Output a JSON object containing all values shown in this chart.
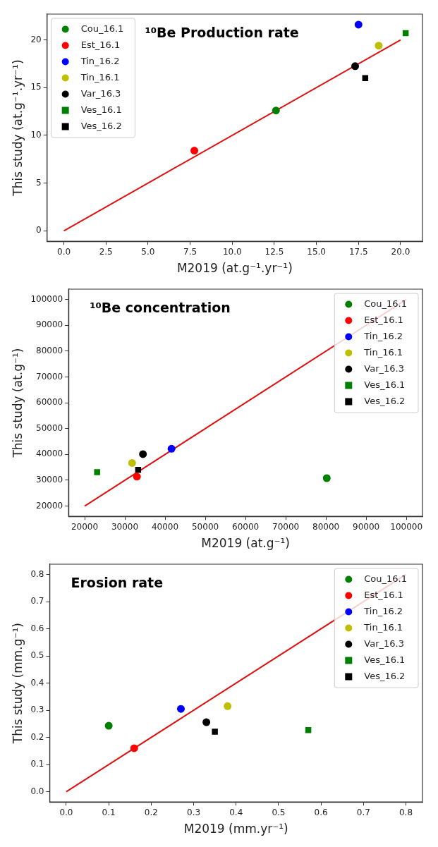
{
  "chart_data": [
    {
      "type": "scatter",
      "title": "¹⁰Be Production rate",
      "xlabel": "M2019 (at.g⁻¹.yr⁻¹)",
      "ylabel": "This study (at.g⁻¹.yr⁻¹)",
      "xlim": [
        -1,
        21.3
      ],
      "ylim": [
        -1.1,
        22.7
      ],
      "xticks": [
        {
          "value": 0,
          "label": "0.0"
        },
        2.5,
        {
          "value": 5,
          "label": "5.0"
        },
        7.5,
        {
          "value": 10,
          "label": "10.0"
        },
        12.5,
        {
          "value": 15,
          "label": "15.0"
        },
        17.5,
        {
          "value": 20,
          "label": "20.0"
        }
      ],
      "yticks": [
        0,
        5,
        10,
        15,
        20
      ],
      "grid": false,
      "legend": "top left",
      "series": [
        {
          "name": "Cou_16.1",
          "color": "#008000",
          "marker": "circle",
          "x": [
            12.6
          ],
          "values": [
            12.6
          ]
        },
        {
          "name": "Est_16.1",
          "color": "#ff0000",
          "marker": "circle",
          "x": [
            7.75
          ],
          "values": [
            8.4
          ]
        },
        {
          "name": "Tin_16.2",
          "color": "#0000ff",
          "marker": "circle",
          "x": [
            17.5
          ],
          "values": [
            21.6
          ]
        },
        {
          "name": "Tin_16.1",
          "color": "#bfbf00",
          "marker": "circle",
          "x": [
            18.7
          ],
          "values": [
            19.4
          ]
        },
        {
          "name": "Var_16.3",
          "color": "#000000",
          "marker": "circle",
          "x": [
            17.3
          ],
          "values": [
            17.25
          ]
        },
        {
          "name": "Ves_16.1",
          "color": "#008000",
          "marker": "square",
          "x": [
            20.3
          ],
          "values": [
            20.7
          ]
        },
        {
          "name": "Ves_16.2",
          "color": "#000000",
          "marker": "square",
          "x": [
            17.9
          ],
          "values": [
            16
          ]
        },
        {
          "type": "line",
          "color": "#e01010",
          "marker": "none",
          "x": [
            0,
            20
          ],
          "values": [
            0,
            20
          ]
        }
      ]
    },
    {
      "type": "scatter",
      "title": "¹⁰Be concentration",
      "xlabel": "M2019 (at.g⁻¹)",
      "ylabel": "This study (at.g⁻¹)",
      "xlim": [
        16000,
        104000
      ],
      "ylim": [
        16000,
        104000
      ],
      "xticks": [
        20000,
        30000,
        40000,
        50000,
        60000,
        70000,
        80000,
        90000,
        100000
      ],
      "yticks": [
        20000,
        30000,
        40000,
        50000,
        60000,
        70000,
        80000,
        90000,
        100000
      ],
      "grid": false,
      "legend": "top right",
      "series": [
        {
          "name": "Cou_16.1",
          "color": "#008000",
          "marker": "circle",
          "x": [
            80200
          ],
          "values": [
            30800
          ]
        },
        {
          "name": "Est_16.1",
          "color": "#ff0000",
          "marker": "circle",
          "x": [
            33000
          ],
          "values": [
            31400
          ]
        },
        {
          "name": "Tin_16.2",
          "color": "#0000ff",
          "marker": "circle",
          "x": [
            41600
          ],
          "values": [
            42200
          ]
        },
        {
          "name": "Tin_16.1",
          "color": "#bfbf00",
          "marker": "circle",
          "x": [
            31800
          ],
          "values": [
            36700
          ]
        },
        {
          "name": "Var_16.3",
          "color": "#000000",
          "marker": "circle",
          "x": [
            34500
          ],
          "values": [
            40100
          ]
        },
        {
          "name": "Ves_16.1",
          "color": "#008000",
          "marker": "square",
          "x": [
            23100
          ],
          "values": [
            33100
          ]
        },
        {
          "name": "Ves_16.2",
          "color": "#000000",
          "marker": "square",
          "x": [
            33300
          ],
          "values": [
            34000
          ]
        },
        {
          "type": "line",
          "color": "#e01010",
          "marker": "none",
          "x": [
            20000,
            100000
          ],
          "values": [
            20000,
            100000
          ]
        }
      ]
    },
    {
      "type": "scatter",
      "title": "Erosion rate",
      "xlabel": "M2019 (mm.yr⁻¹)",
      "ylabel": "This study (mm.g⁻¹)",
      "xlim": [
        -0.039,
        0.839
      ],
      "ylim": [
        -0.038,
        0.838
      ],
      "xticks": [
        {
          "value": 0,
          "label": "0.0"
        },
        0.1,
        0.2,
        0.3,
        0.4,
        0.5,
        0.6,
        0.7,
        0.8
      ],
      "yticks": [
        {
          "value": 0,
          "label": "0.0"
        },
        0.1,
        0.2,
        0.3,
        0.4,
        0.5,
        0.6,
        0.7,
        0.8
      ],
      "grid": false,
      "legend": "top right",
      "series": [
        {
          "name": "Cou_16.1",
          "color": "#008000",
          "marker": "circle",
          "x": [
            0.1
          ],
          "values": [
            0.243
          ]
        },
        {
          "name": "Est_16.1",
          "color": "#ff0000",
          "marker": "circle",
          "x": [
            0.16
          ],
          "values": [
            0.16
          ]
        },
        {
          "name": "Tin_16.2",
          "color": "#0000ff",
          "marker": "circle",
          "x": [
            0.27
          ],
          "values": [
            0.305
          ]
        },
        {
          "name": "Tin_16.1",
          "color": "#bfbf00",
          "marker": "circle",
          "x": [
            0.38
          ],
          "values": [
            0.315
          ]
        },
        {
          "name": "Var_16.3",
          "color": "#000000",
          "marker": "circle",
          "x": [
            0.33
          ],
          "values": [
            0.256
          ]
        },
        {
          "name": "Ves_16.1",
          "color": "#008000",
          "marker": "square",
          "x": [
            0.57
          ],
          "values": [
            0.227
          ]
        },
        {
          "name": "Ves_16.2",
          "color": "#000000",
          "marker": "square",
          "x": [
            0.35
          ],
          "values": [
            0.221
          ]
        },
        {
          "type": "line",
          "color": "#e01010",
          "marker": "none",
          "x": [
            0,
            0.8
          ],
          "values": [
            0,
            0.8
          ]
        }
      ]
    }
  ]
}
